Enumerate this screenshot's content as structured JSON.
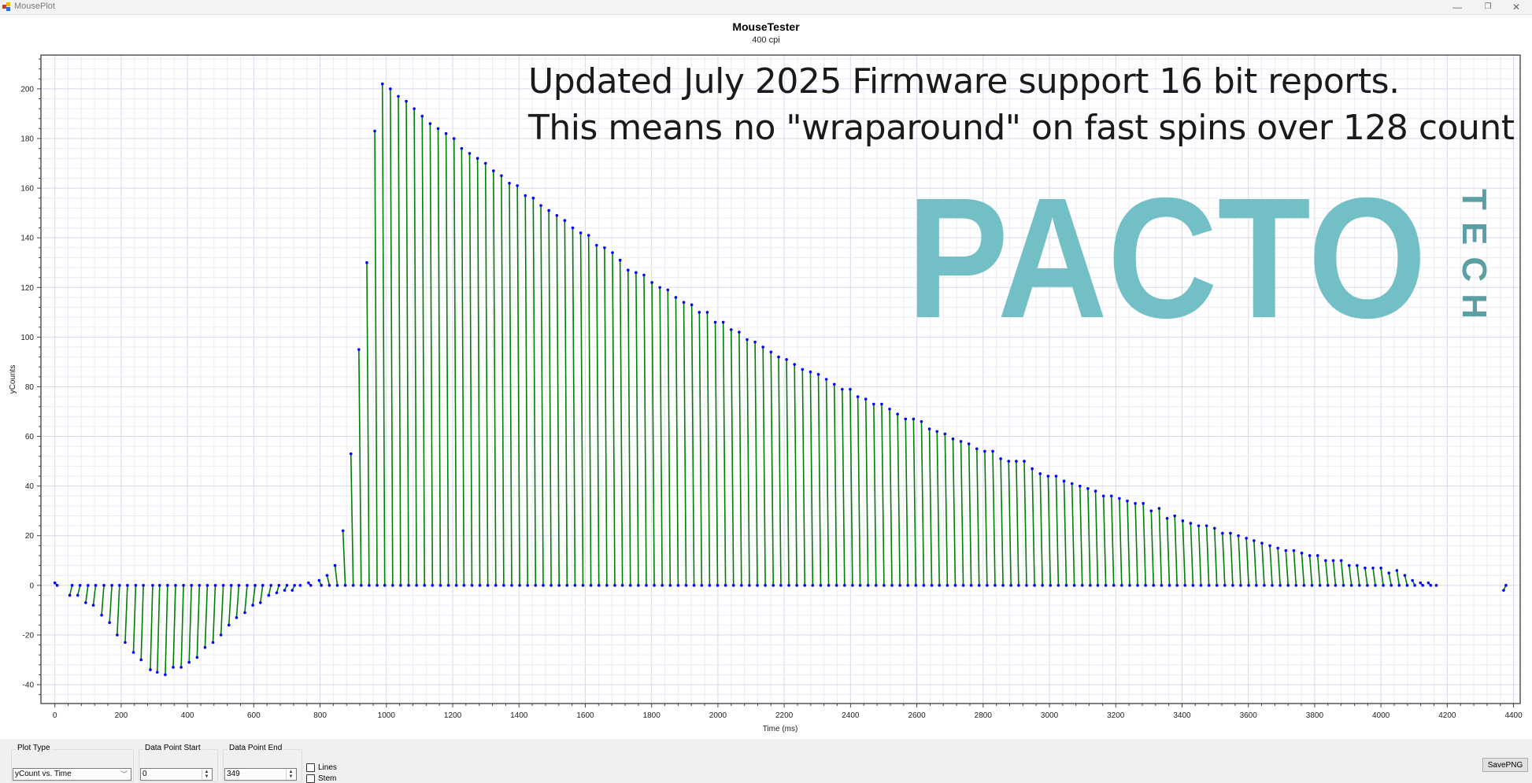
{
  "window": {
    "title": "MousePlot",
    "minimize": "—",
    "restore": "❐",
    "close": "✕"
  },
  "overlay_text": [
    "Updated July 2025 Firmware support 16 bit reports.",
    "This means no \"wraparound\" on fast spins over 128 count"
  ],
  "logo": {
    "main": "PACTO",
    "sub": "TECH",
    "color": "#72bfc6",
    "sub_color": "#5b9ea3"
  },
  "controls": {
    "plot_type_label": "Plot Type",
    "plot_type_value": "yCount vs. Time",
    "start_label": "Data Point Start",
    "start_value": "0",
    "end_label": "Data Point End",
    "end_value": "349",
    "lines_label": "Lines",
    "lines_checked": false,
    "stem_label": "Stem",
    "stem_checked": false,
    "save_label": "SavePNG"
  },
  "chart_data": {
    "type": "line",
    "title": "MouseTester",
    "subtitle": "400 cpi",
    "xlabel": "Time (ms)",
    "ylabel": "yCounts",
    "xlim": [
      -42,
      4420
    ],
    "ylim": [
      -47.6,
      213.6
    ],
    "xticks": [
      0,
      200,
      400,
      600,
      800,
      1000,
      1200,
      1400,
      1600,
      1800,
      2000,
      2200,
      2400,
      2600,
      2800,
      3000,
      3200,
      3400,
      3600,
      3800,
      4000,
      4200,
      4400
    ],
    "yticks": [
      -40,
      -20,
      0,
      20,
      40,
      60,
      80,
      100,
      120,
      140,
      160,
      180,
      200
    ],
    "grid": true,
    "line_color": "#008000",
    "marker_color": "#0000ff",
    "series": [
      {
        "x": [
          0,
          45,
          69,
          93,
          116,
          141,
          165,
          188,
          212,
          237,
          260,
          288,
          309,
          333,
          357,
          381,
          405,
          429,
          453,
          477,
          501,
          525,
          548,
          573,
          597,
          620,
          645,
          669,
          693,
          716,
          740,
          765,
          797,
          821,
          845,
          869,
          893,
          917,
          941,
          965,
          988,
          1012,
          1036,
          1060,
          1084,
          1108,
          1132,
          1156,
          1180,
          1204,
          1227,
          1251,
          1275,
          1299,
          1323,
          1347,
          1371,
          1395,
          1419,
          1443,
          1466,
          1490,
          1514,
          1538,
          1562,
          1586,
          1610,
          1634,
          1658,
          1682,
          1705,
          1729,
          1753,
          1777,
          1801,
          1825,
          1849,
          1873,
          1897,
          1921,
          1944,
          1968,
          1992,
          2016,
          2040,
          2064,
          2088,
          2112,
          2136,
          2160,
          2183,
          2207,
          2231,
          2255,
          2279,
          2303,
          2327,
          2351,
          2375,
          2399,
          2422,
          2446,
          2470,
          2494,
          2518,
          2542,
          2566,
          2590,
          2614,
          2638,
          2661,
          2685,
          2709,
          2733,
          2757,
          2781,
          2805,
          2829,
          2853,
          2877,
          2900,
          2924,
          2948,
          2972,
          2996,
          3020,
          3044,
          3068,
          3092,
          3116,
          3139,
          3163,
          3187,
          3211,
          3235,
          3259,
          3283,
          3307,
          3331,
          3355,
          3378,
          3402,
          3426,
          3450,
          3474,
          3498,
          3522,
          3546,
          3570,
          3594,
          3617,
          3641,
          3665,
          3689,
          3713,
          3737,
          3761,
          3785,
          3809,
          3833,
          3856,
          3880,
          3904,
          3928,
          3952,
          3976,
          4000,
          4024,
          4048,
          4072,
          4095,
          4119,
          4143,
          4167,
          4370
        ],
        "y": [
          1,
          -4,
          -4,
          -7,
          -8,
          -12,
          -15,
          -20,
          -23,
          -27,
          -30,
          -34,
          -35,
          -36,
          -33,
          -33,
          -31,
          -29,
          -25,
          -23,
          -20,
          -16,
          -13,
          -11,
          -8,
          -7,
          -4,
          -3,
          -2,
          -2,
          0,
          1,
          2,
          4,
          8,
          22,
          53,
          95,
          130,
          183,
          202,
          200,
          197,
          195,
          192,
          189,
          186,
          184,
          182,
          180,
          176,
          174,
          172,
          170,
          167,
          165,
          162,
          161,
          157,
          156,
          153,
          151,
          149,
          147,
          144,
          142,
          141,
          137,
          136,
          134,
          131,
          127,
          126,
          125,
          122,
          120,
          119,
          116,
          114,
          113,
          110,
          110,
          106,
          106,
          103,
          102,
          99,
          98,
          96,
          94,
          92,
          91,
          89,
          87,
          86,
          85,
          83,
          81,
          79,
          79,
          76,
          75,
          73,
          73,
          71,
          69,
          67,
          67,
          66,
          63,
          62,
          61,
          59,
          58,
          57,
          55,
          54,
          54,
          51,
          50,
          50,
          50,
          47,
          45,
          44,
          44,
          42,
          41,
          40,
          39,
          38,
          36,
          36,
          35,
          34,
          33,
          33,
          30,
          31,
          27,
          28,
          26,
          25,
          24,
          24,
          23,
          21,
          21,
          20,
          19,
          18,
          17,
          16,
          15,
          14,
          14,
          13,
          12,
          12,
          10,
          10,
          10,
          8,
          8,
          7,
          7,
          7,
          5,
          6,
          4,
          2,
          1,
          1,
          0,
          -2
        ]
      }
    ]
  }
}
